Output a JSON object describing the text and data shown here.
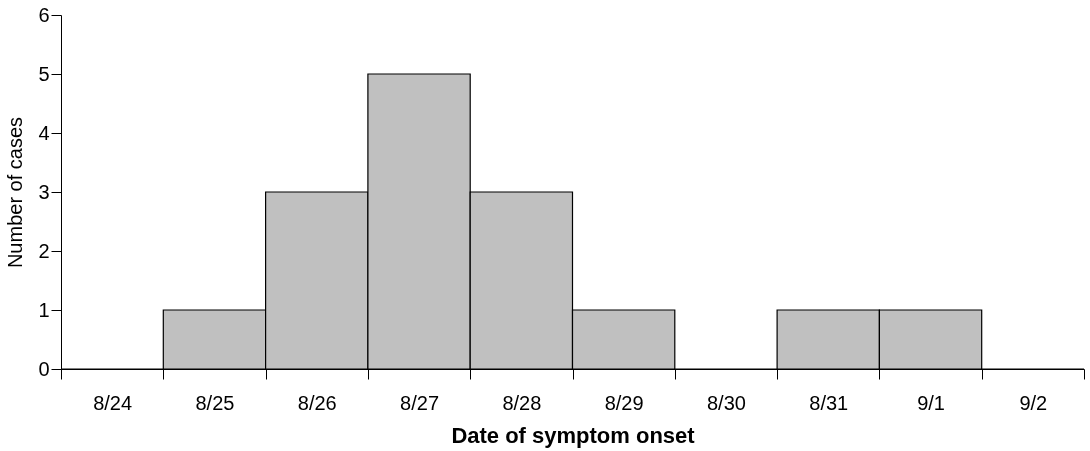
{
  "chart_data": {
    "type": "bar",
    "xlabel": "Date of symptom onset",
    "ylabel": "Number of cases",
    "categories": [
      "8/24",
      "8/25",
      "8/26",
      "8/27",
      "8/28",
      "8/29",
      "8/30",
      "8/31",
      "9/1",
      "9/2"
    ],
    "values": [
      0,
      1,
      3,
      5,
      3,
      1,
      0,
      1,
      1,
      0
    ],
    "color": "#c0c0c0",
    "ylim": [
      0,
      6
    ],
    "yticks": [
      0,
      1,
      2,
      3,
      4,
      5,
      6
    ],
    "grid": false
  }
}
